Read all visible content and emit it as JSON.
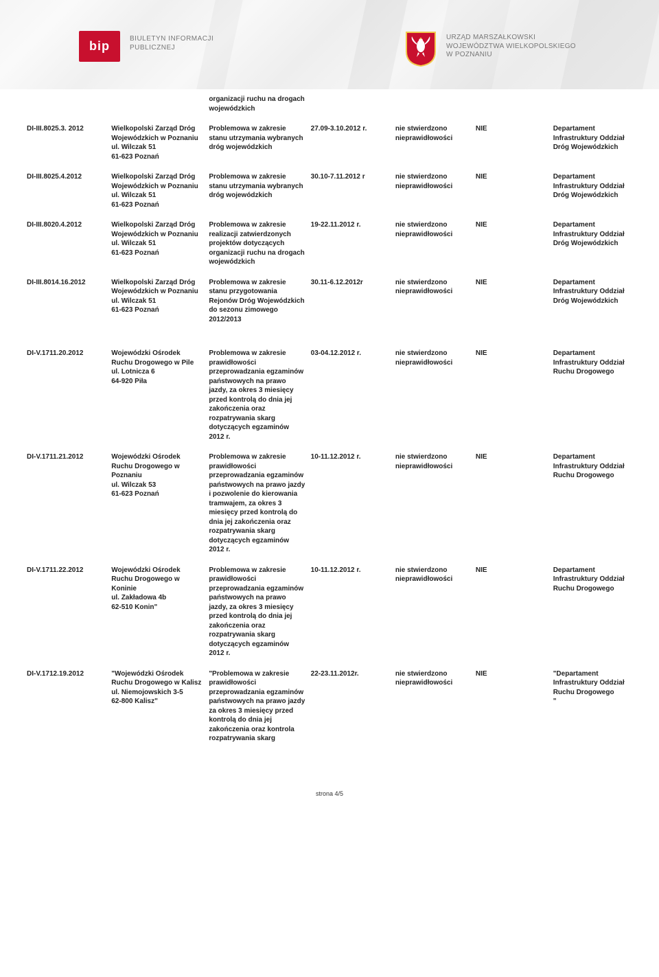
{
  "header": {
    "bip_label": "bip",
    "bip_text_l1": "BIULETYN INFORMACJI",
    "bip_text_l2": "PUBLICZNEJ",
    "right_text_l1": "URZĄD MARSZAŁKOWSKI",
    "right_text_l2": "WOJEWÓDZTWA WIELKOPOLSKIEGO",
    "right_text_l3": "W POZNANIU"
  },
  "colors": {
    "accent_red": "#c8102e",
    "shield_red": "#c8102e",
    "shield_yellow": "#f2c94c",
    "eagle_white": "#ffffff",
    "header_gray": "#777777"
  },
  "continuation_scope": "organizacji ruchu na drogach wojewódzkich",
  "rows": [
    {
      "id": "DI-III.8025.3. 2012",
      "entity": "Wielkopolski Zarząd Dróg Wojewódzkich w Poznaniu\nul. Wilczak 51\n61-623 Poznań",
      "scope": "Problemowa w zakresie stanu utrzymania wybranych dróg wojewódzkich",
      "period": "27.09-3.10.2012 r.",
      "result": "nie stwierdzono nieprawidłowości",
      "flag": "NIE",
      "dept": "Departament Infrastruktury Oddział Dróg Wojewódzkich"
    },
    {
      "id": "DI-III.8025.4.2012",
      "entity": "Wielkopolski Zarząd Dróg Wojewódzkich w Poznaniu\nul. Wilczak 51\n61-623 Poznań",
      "scope": "Problemowa w zakresie stanu utrzymania wybranych dróg wojewódzkich",
      "period": "30.10-7.11.2012 r",
      "result": "nie stwierdzono nieprawidłowości",
      "flag": "NIE",
      "dept": "Departament Infrastruktury Oddział Dróg Wojewódzkich"
    },
    {
      "id": "DI-III.8020.4.2012",
      "entity": "Wielkopolski Zarząd Dróg Wojewódzkich w Poznaniu\nul. Wilczak 51\n61-623 Poznań",
      "scope": "Problemowa w zakresie realizacji zatwierdzonych projektów dotyczących organizacji ruchu na drogach wojewódzkich",
      "period": "19-22.11.2012 r.",
      "result": "nie stwierdzono nieprawidłowości",
      "flag": "NIE",
      "dept": "Departament Infrastruktury Oddział Dróg Wojewódzkich"
    },
    {
      "id": "DI-III.8014.16.2012",
      "entity": "Wielkopolski Zarząd Dróg Wojewódzkich w Poznaniu\nul. Wilczak 51\n61-623 Poznań",
      "scope": "Problemowa w zakresie stanu przygotowania Rejonów Dróg Wojewódzkich do sezonu zimowego 2012/2013",
      "period": "30.11-6.12.2012r",
      "result": "nie stwierdzono nieprawidłowości",
      "flag": "NIE",
      "dept": "Departament Infrastruktury Oddział Dróg Wojewódzkich"
    },
    {
      "id": "DI-V.1711.20.2012",
      "entity": "Wojewódzki Ośrodek Ruchu Drogowego w Pile ul. Lotnicza 6\n64-920 Piła",
      "scope": "Problemowa w zakresie prawidłowości przeprowadzania egzaminów państwowych na prawo jazdy, za okres 3 miesięcy przed kontrolą do dnia jej zakończenia oraz rozpatrywania skarg dotyczących egzaminów 2012 r.",
      "period": "03-04.12.2012 r.",
      "result": "nie stwierdzono nieprawidłowości",
      "flag": "NIE",
      "dept": "Departament Infrastruktury Oddział Ruchu Drogowego"
    },
    {
      "id": "DI-V.1711.21.2012",
      "entity": "Wojewódzki Ośrodek Ruchu Drogowego w Poznaniu\nul. Wilczak 53\n61-623 Poznań",
      "scope": "Problemowa w zakresie prawidłowości przeprowadzania egzaminów państwowych na prawo jazdy i pozwolenie do kierowania tramwajem, za okres 3 miesięcy przed kontrolą do dnia jej zakończenia oraz rozpatrywania skarg dotyczących egzaminów 2012 r.",
      "period": "10-11.12.2012 r.",
      "result": "nie stwierdzono nieprawidłowości",
      "flag": "NIE",
      "dept": "Departament Infrastruktury Oddział Ruchu Drogowego"
    },
    {
      "id": "DI-V.1711.22.2012",
      "entity": "Wojewódzki Ośrodek Ruchu Drogowego w Koninie\nul. Zakładowa 4b\n62-510 Konin\"",
      "scope": "Problemowa w zakresie prawidłowości przeprowadzania egzaminów państwowych na prawo jazdy, za okres 3 miesięcy przed kontrolą do dnia jej zakończenia oraz rozpatrywania skarg dotyczących egzaminów 2012 r.",
      "period": "10-11.12.2012 r.",
      "result": "nie stwierdzono nieprawidłowości",
      "flag": "NIE",
      "dept": "Departament Infrastruktury Oddział Ruchu Drogowego"
    },
    {
      "id": "DI-V.1712.19.2012",
      "entity": "\"Wojewódzki Ośrodek Ruchu Drogowego w Kalisz ul. Niemojowskich 3-5\n62-800 Kalisz\"",
      "scope": "\"Problemowa w zakresie prawidłowości przeprowadzania egzaminów państwowych na prawo jazdy za okres 3 miesięcy przed kontrolą do dnia jej zakończenia oraz kontrola rozpatrywania skarg",
      "period": "22-23.11.2012r.",
      "result": "nie stwierdzono nieprawidłowości",
      "flag": "NIE",
      "dept": "\"Departament Infrastruktury Oddział Ruchu Drogowego\n\""
    }
  ],
  "footer": {
    "page_label": "strona 4/5"
  }
}
